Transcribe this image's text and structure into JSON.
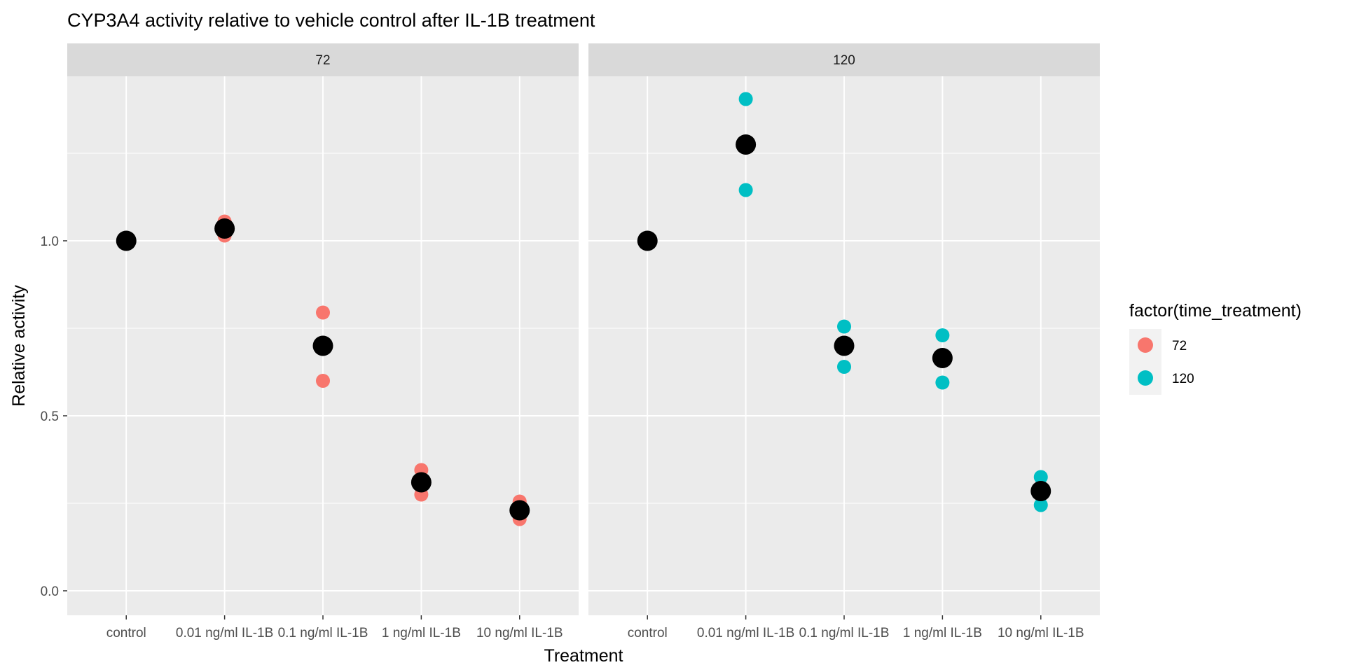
{
  "chart_data": {
    "type": "scatter",
    "title": "CYP3A4 activity relative to vehicle control after IL-1B treatment",
    "xlabel": "Treatment",
    "ylabel": "Relative activity",
    "categories": [
      "control",
      "0.01 ng/ml IL-1B",
      "0.1 ng/ml IL-1B",
      "1 ng/ml IL-1B",
      "10 ng/ml IL-1B"
    ],
    "ylim": [
      -0.07,
      1.47
    ],
    "yticks": [
      0.0,
      0.5,
      1.0
    ],
    "ytick_labels": [
      "0.0",
      "0.5",
      "1.0"
    ],
    "grid": true,
    "legend": {
      "title": "factor(time_treatment)",
      "position": "right",
      "entries": [
        {
          "label": "72",
          "color": "#F8766D"
        },
        {
          "label": "120",
          "color": "#00BFC4"
        }
      ]
    },
    "mean_color": "#000000",
    "panels": [
      {
        "label": "72",
        "color": "#F8766D",
        "points": [
          [
            1.0,
            1.0
          ],
          [
            1.055,
            1.015
          ],
          [
            0.795,
            0.6
          ],
          [
            0.345,
            0.275
          ],
          [
            0.255,
            0.205
          ]
        ],
        "means": [
          1.0,
          1.035,
          0.7,
          0.31,
          0.23
        ]
      },
      {
        "label": "120",
        "color": "#00BFC4",
        "points": [
          [
            1.0,
            1.0
          ],
          [
            1.405,
            1.145
          ],
          [
            0.755,
            0.64
          ],
          [
            0.73,
            0.595
          ],
          [
            0.325,
            0.245
          ]
        ],
        "means": [
          1.0,
          1.275,
          0.7,
          0.665,
          0.285
        ]
      }
    ]
  }
}
